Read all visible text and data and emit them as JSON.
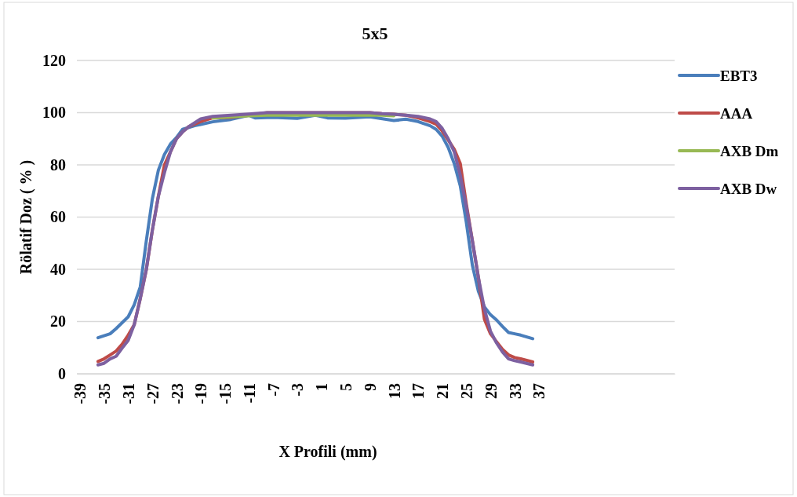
{
  "chart_data": {
    "type": "line",
    "title": "5x5",
    "xlabel": "X Profili (mm)",
    "ylabel": "Rölatif Doz ( % )",
    "xlim": [
      -39.5,
      59.5
    ],
    "xticks": [
      -39,
      -35,
      -31,
      -27,
      -23,
      -19,
      -15,
      -11,
      -7,
      -3,
      1,
      5,
      9,
      13,
      17,
      21,
      25,
      29,
      33,
      37
    ],
    "ylim": [
      0,
      120
    ],
    "yticks": [
      0,
      20,
      40,
      60,
      80,
      100,
      120
    ],
    "grid": "y",
    "legend": "right",
    "line_style": "solid",
    "marker": "none",
    "series": [
      {
        "name": "EBT3",
        "color": "#4a7ebb",
        "x": [
          -36,
          -34,
          -33,
          -31,
          -30,
          -29,
          -28,
          -27,
          -26,
          -25,
          -24,
          -23,
          -22,
          -20,
          -17,
          -14,
          -11,
          -10,
          -7,
          -3,
          0,
          2,
          5,
          9,
          13,
          15,
          17,
          19,
          20,
          21,
          22,
          23,
          24,
          25,
          26,
          27,
          28,
          29,
          30,
          31,
          32,
          33,
          34,
          36
        ],
        "values": [
          13.8,
          15.3,
          17.3,
          21.8,
          26.4,
          33.3,
          50.9,
          67,
          78,
          84,
          88,
          90.5,
          93.6,
          95,
          96.5,
          97.4,
          99,
          98,
          98.2,
          97.8,
          99,
          98,
          97.9,
          98.4,
          97,
          97.5,
          96.6,
          95,
          93.6,
          91,
          86.7,
          80.5,
          72,
          58,
          41.6,
          31.6,
          25.6,
          22.6,
          20.6,
          18.1,
          15.8,
          15.3,
          14.8,
          13.4
        ]
      },
      {
        "name": "AAA",
        "color": "#be4b48",
        "x": [
          -36,
          -35,
          -34,
          -33,
          -32,
          -31,
          -30,
          -29,
          -28,
          -27,
          -26,
          -25,
          -24,
          -23,
          -22,
          -21,
          -19,
          -17,
          -14,
          -11,
          -8,
          9,
          11,
          13,
          15,
          17,
          19,
          20,
          21,
          22,
          23,
          24,
          25,
          26,
          27,
          28,
          29,
          30,
          31,
          32,
          33,
          34,
          36
        ],
        "values": [
          4.7,
          5.7,
          7.2,
          8.7,
          11.3,
          14.8,
          18.8,
          28.8,
          39.9,
          55,
          68,
          80,
          85,
          90,
          92.6,
          94.6,
          96.6,
          98,
          98.2,
          99,
          100,
          100,
          99.6,
          99.4,
          99,
          98,
          96.6,
          95.6,
          93,
          89.5,
          86,
          80.5,
          65,
          51,
          36.9,
          20.8,
          15.3,
          12.3,
          9.3,
          7.2,
          6.2,
          5.7,
          4.5
        ]
      },
      {
        "name": "AXB Dm",
        "color": "#98b954",
        "x": [
          -17,
          -14,
          -11,
          -8,
          0,
          9,
          11,
          13
        ],
        "values": [
          98,
          98.4,
          98.8,
          99,
          99,
          99,
          99,
          98.8
        ]
      },
      {
        "name": "AXB Dw",
        "color": "#7d60a0",
        "x": [
          -36,
          -35,
          -34,
          -33,
          -32,
          -31,
          -30,
          -29,
          -28,
          -27,
          -26,
          -25,
          -24,
          -23,
          -22,
          -21,
          -19,
          -17,
          -14,
          -11,
          -8,
          9,
          11,
          13,
          15,
          17,
          19,
          20,
          21,
          22,
          23,
          24,
          25,
          26,
          27,
          28,
          29,
          30,
          31,
          32,
          33,
          34,
          36
        ],
        "values": [
          3.4,
          4,
          5.7,
          6.7,
          9.8,
          12.8,
          18.8,
          28.8,
          39.9,
          55,
          68,
          77,
          85,
          90,
          92.6,
          94.6,
          97.6,
          98.6,
          99,
          99.5,
          100,
          100,
          99.6,
          99.4,
          99,
          98.6,
          97.6,
          96.6,
          94,
          90,
          85,
          76,
          64,
          51,
          36.9,
          24.8,
          16.3,
          11.8,
          8.3,
          5.7,
          5,
          4.5,
          3.4
        ]
      }
    ]
  }
}
